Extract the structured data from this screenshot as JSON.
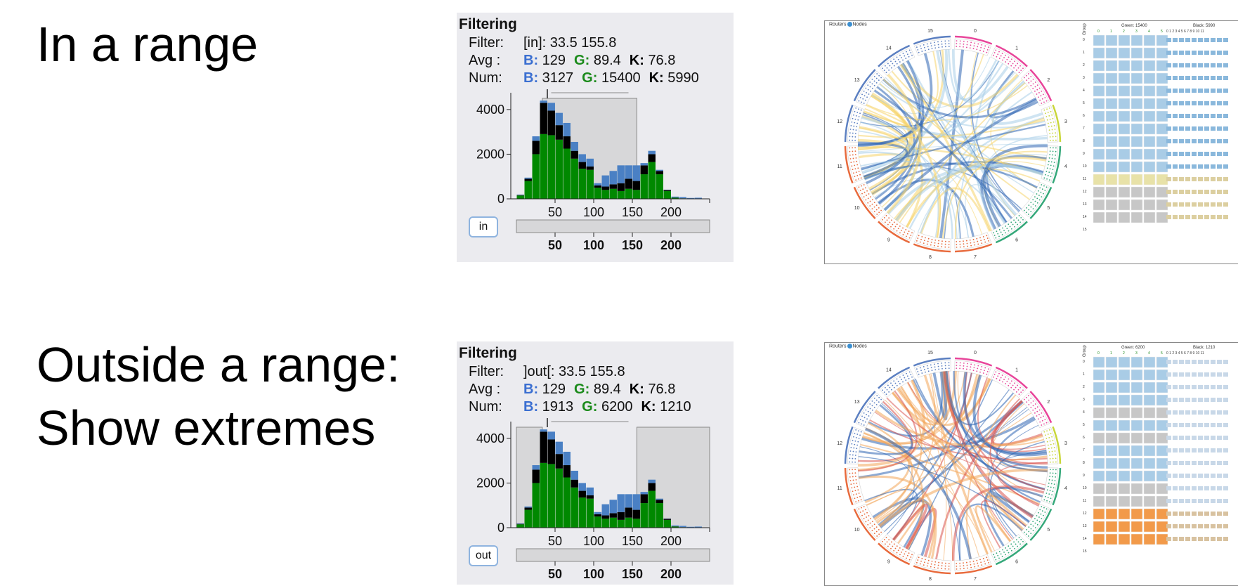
{
  "labels": {
    "in_range": "In a range",
    "outside_line1": "Outside a range:",
    "outside_line2": "Show extremes"
  },
  "panels": [
    {
      "id": "in",
      "title": "Filtering",
      "filter_key": "Filter:",
      "filter_value": "[in]: 33.5 155.8",
      "avg_key": "Avg :",
      "avg": {
        "B": "129",
        "G": "89.4",
        "K": "76.8"
      },
      "num_key": "Num:",
      "num": {
        "B": "3127",
        "G": "15400",
        "K": "5990"
      },
      "series_labels": {
        "B": "B:",
        "G": "G:",
        "K": "K:"
      },
      "button_label": "in",
      "range_mode": "in",
      "range": [
        33.5,
        155.8
      ]
    },
    {
      "id": "out",
      "title": "Filtering",
      "filter_key": "Filter:",
      "filter_value": "]out[: 33.5 155.8",
      "avg_key": "Avg :",
      "avg": {
        "B": "129",
        "G": "89.4",
        "K": "76.8"
      },
      "num_key": "Num:",
      "num": {
        "B": "1913",
        "G": "6200",
        "K": "1210"
      },
      "series_labels": {
        "B": "B:",
        "G": "G:",
        "K": "K:"
      },
      "button_label": "out",
      "range_mode": "out",
      "range": [
        33.5,
        155.8
      ]
    }
  ],
  "chart_data": {
    "type": "bar",
    "stacked": true,
    "x": [
      5,
      15,
      25,
      35,
      45,
      55,
      65,
      75,
      85,
      95,
      105,
      115,
      125,
      135,
      145,
      155,
      165,
      175,
      185,
      195,
      205,
      215,
      225,
      235
    ],
    "series": [
      {
        "name": "G",
        "color": "#008800",
        "values": [
          150,
          800,
          2000,
          2900,
          2850,
          2650,
          2250,
          1800,
          1350,
          1300,
          500,
          400,
          450,
          350,
          450,
          400,
          1100,
          1650,
          1100,
          350,
          50,
          20,
          10,
          10
        ]
      },
      {
        "name": "K",
        "color": "#000000",
        "values": [
          20,
          100,
          600,
          1400,
          1100,
          650,
          550,
          350,
          300,
          150,
          100,
          150,
          200,
          350,
          450,
          400,
          400,
          350,
          150,
          50,
          10,
          5,
          5,
          5
        ]
      },
      {
        "name": "B",
        "color": "#4a80c4",
        "values": [
          20,
          50,
          200,
          100,
          350,
          550,
          600,
          400,
          350,
          350,
          100,
          500,
          600,
          800,
          600,
          700,
          100,
          150,
          50,
          10,
          40,
          55,
          25,
          35
        ]
      }
    ],
    "yticks": [
      0,
      2000,
      4000
    ],
    "xticks": [
      50,
      100,
      150,
      200
    ],
    "xlim": [
      0,
      250
    ],
    "ylim": [
      0,
      4500
    ]
  },
  "chord_views": [
    {
      "id": "in",
      "header_left": "Routers",
      "header_right": "Nodes",
      "green_label": "Green: 15400",
      "black_label": "Black: 5990",
      "group_label": "Group",
      "highlight_colors": [
        "#f5d36a",
        "#a7cde8",
        "#2d64b3"
      ],
      "segments": [
        "0",
        "1",
        "2",
        "3",
        "4",
        "5",
        "6",
        "7",
        "8",
        "9",
        "10",
        "11",
        "12",
        "13",
        "14",
        "15"
      ]
    },
    {
      "id": "out",
      "header_left": "Routers",
      "header_right": "Nodes",
      "green_label": "Green: 6200",
      "black_label": "Black: 1210",
      "group_label": "Group",
      "highlight_colors": [
        "#f2a559",
        "#d9534f",
        "#2d64b3"
      ],
      "segments": [
        "0",
        "1",
        "2",
        "3",
        "4",
        "5",
        "6",
        "7",
        "8",
        "9",
        "10",
        "11",
        "12",
        "13",
        "14",
        "15"
      ]
    }
  ],
  "matrix": {
    "column_headers": [
      "0",
      "1",
      "2",
      "3",
      "4",
      "5"
    ],
    "small_headers": "0 1 2 3 4 5 6 7 8 9 10 11",
    "rows": [
      "0",
      "1",
      "2",
      "3",
      "4",
      "5",
      "6",
      "7",
      "8",
      "9",
      "10",
      "11",
      "12",
      "13",
      "14",
      "15"
    ]
  }
}
